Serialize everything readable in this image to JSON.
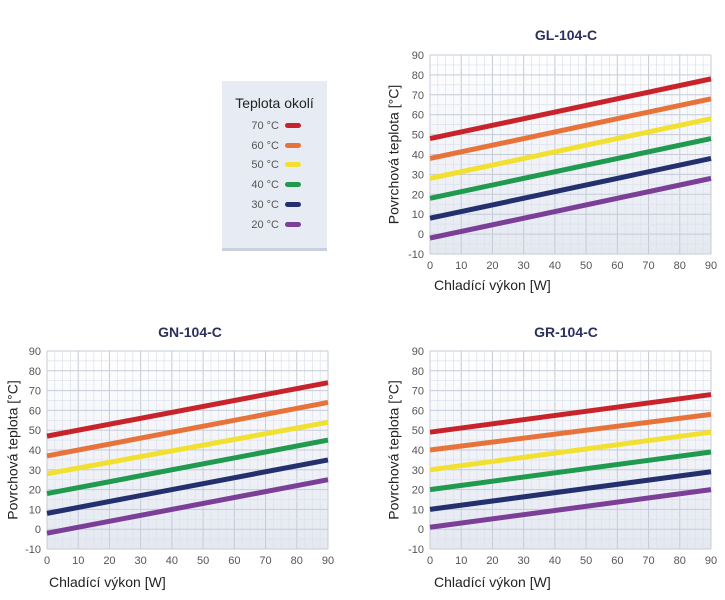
{
  "legend": {
    "title": "Teplota okolí",
    "items": [
      {
        "label": "70 °C",
        "color": "#c8232b"
      },
      {
        "label": "60 °C",
        "color": "#e8733a"
      },
      {
        "label": "50 °C",
        "color": "#f2e030"
      },
      {
        "label": "40 °C",
        "color": "#1f9a4e"
      },
      {
        "label": "30 °C",
        "color": "#24306e"
      },
      {
        "label": "20 °C",
        "color": "#7b3f98"
      }
    ]
  },
  "chart_data": [
    {
      "type": "line",
      "title": "GL-104-C",
      "xlabel": "Chladící výkon [W]",
      "ylabel": "Povrchová teplota [°C]",
      "xlim": [
        0,
        90
      ],
      "ylim": [
        -10,
        90
      ],
      "xticks": [
        0,
        10,
        20,
        30,
        40,
        50,
        60,
        70,
        80,
        90
      ],
      "yticks": [
        -10,
        0,
        10,
        20,
        30,
        40,
        50,
        60,
        70,
        80,
        90
      ],
      "grid": true,
      "x": [
        0,
        90
      ],
      "series": [
        {
          "name": "70 °C",
          "color": "#c8232b",
          "values": [
            48,
            78
          ]
        },
        {
          "name": "60 °C",
          "color": "#e8733a",
          "values": [
            38,
            68
          ]
        },
        {
          "name": "50 °C",
          "color": "#f2e030",
          "values": [
            28,
            58
          ]
        },
        {
          "name": "40 °C",
          "color": "#1f9a4e",
          "values": [
            18,
            48
          ]
        },
        {
          "name": "30 °C",
          "color": "#24306e",
          "values": [
            8,
            38
          ]
        },
        {
          "name": "20 °C",
          "color": "#7b3f98",
          "values": [
            -2,
            28
          ]
        }
      ]
    },
    {
      "type": "line",
      "title": "GN-104-C",
      "xlabel": "Chladící výkon [W]",
      "ylabel": "Povrchová teplota [°C]",
      "xlim": [
        0,
        90
      ],
      "ylim": [
        -10,
        90
      ],
      "xticks": [
        0,
        10,
        20,
        30,
        40,
        50,
        60,
        70,
        80,
        90
      ],
      "yticks": [
        -10,
        0,
        10,
        20,
        30,
        40,
        50,
        60,
        70,
        80,
        90
      ],
      "grid": true,
      "x": [
        0,
        90
      ],
      "series": [
        {
          "name": "70 °C",
          "color": "#c8232b",
          "values": [
            47,
            74
          ]
        },
        {
          "name": "60 °C",
          "color": "#e8733a",
          "values": [
            37,
            64
          ]
        },
        {
          "name": "50 °C",
          "color": "#f2e030",
          "values": [
            28,
            54
          ]
        },
        {
          "name": "40 °C",
          "color": "#1f9a4e",
          "values": [
            18,
            45
          ]
        },
        {
          "name": "30 °C",
          "color": "#24306e",
          "values": [
            8,
            35
          ]
        },
        {
          "name": "20 °C",
          "color": "#7b3f98",
          "values": [
            -2,
            25
          ]
        }
      ]
    },
    {
      "type": "line",
      "title": "GR-104-C",
      "xlabel": "Chladící výkon [W]",
      "ylabel": "Povrchová teplota [°C]",
      "xlim": [
        0,
        90
      ],
      "ylim": [
        -10,
        90
      ],
      "xticks": [
        0,
        10,
        20,
        30,
        40,
        50,
        60,
        70,
        80,
        90
      ],
      "yticks": [
        -10,
        0,
        10,
        20,
        30,
        40,
        50,
        60,
        70,
        80,
        90
      ],
      "grid": true,
      "x": [
        0,
        90
      ],
      "series": [
        {
          "name": "70 °C",
          "color": "#c8232b",
          "values": [
            49,
            68
          ]
        },
        {
          "name": "60 °C",
          "color": "#e8733a",
          "values": [
            40,
            58
          ]
        },
        {
          "name": "50 °C",
          "color": "#f2e030",
          "values": [
            30,
            49
          ]
        },
        {
          "name": "40 °C",
          "color": "#1f9a4e",
          "values": [
            20,
            39
          ]
        },
        {
          "name": "30 °C",
          "color": "#24306e",
          "values": [
            10,
            29
          ]
        },
        {
          "name": "20 °C",
          "color": "#7b3f98",
          "values": [
            1,
            20
          ]
        }
      ]
    }
  ]
}
